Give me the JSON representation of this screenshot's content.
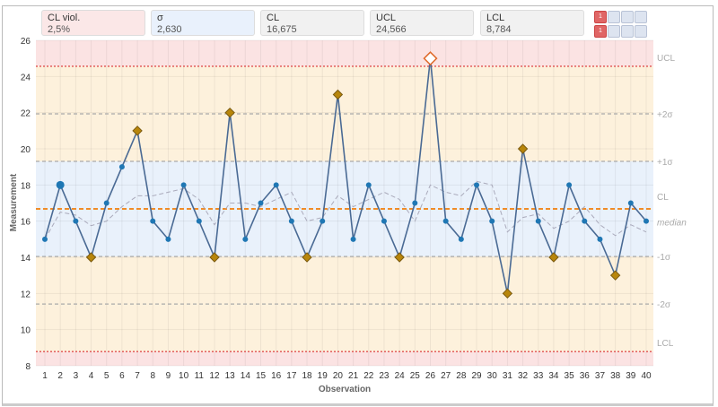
{
  "cards": [
    {
      "label": "CL viol.",
      "value": "2,5%",
      "bg": "#fbe7e7"
    },
    {
      "label": "σ",
      "value": "2,630",
      "bg": "#e9f1fc"
    },
    {
      "label": "CL",
      "value": "16,675",
      "bg": "#f1f1f1"
    },
    {
      "label": "UCL",
      "value": "24,566",
      "bg": "#f1f1f1"
    },
    {
      "label": "LCL",
      "value": "8,784",
      "bg": "#f1f1f1"
    }
  ],
  "toggle_label": "1",
  "chart_data": {
    "type": "line",
    "xlabel": "Observation",
    "ylabel": "Measurement",
    "ylim": [
      8,
      26
    ],
    "yticks": [
      8,
      10,
      12,
      14,
      16,
      18,
      20,
      22,
      24,
      26
    ],
    "x": [
      1,
      2,
      3,
      4,
      5,
      6,
      7,
      8,
      9,
      10,
      11,
      12,
      13,
      14,
      15,
      16,
      17,
      18,
      19,
      20,
      21,
      22,
      23,
      24,
      25,
      26,
      27,
      28,
      29,
      30,
      31,
      32,
      33,
      34,
      35,
      36,
      37,
      38,
      39,
      40
    ],
    "values": [
      15,
      18,
      16,
      14,
      17,
      19,
      21,
      16,
      15,
      18,
      16,
      14,
      22,
      15,
      17,
      18,
      16,
      14,
      16,
      23,
      15,
      18,
      16,
      14,
      17,
      25,
      16,
      15,
      18,
      16,
      12,
      20,
      16,
      14,
      18,
      16,
      15,
      13,
      17,
      16
    ],
    "violations": [
      4,
      7,
      12,
      13,
      18,
      20,
      24,
      26,
      31,
      32,
      34,
      38
    ],
    "highlighted": [
      2
    ],
    "cl": 16.675,
    "ucl": 24.566,
    "lcl": 8.784,
    "sigma": 2.63,
    "median": 16,
    "limit_labels": {
      "ucl": "UCL",
      "p2": "+2σ",
      "p1": "+1σ",
      "cl": "CL",
      "median": "median",
      "m1": "-1σ",
      "m2": "-2σ",
      "lcl": "LCL"
    },
    "colors": {
      "line": "#4a6a94",
      "point": "#1f77b4",
      "violation": "#b8860b",
      "cl": "#f08c28",
      "limit": "#e05050",
      "zone_red": "#fbe3e3",
      "zone_orange": "#fdf1dc",
      "zone_blue": "#e9f1fb"
    }
  }
}
